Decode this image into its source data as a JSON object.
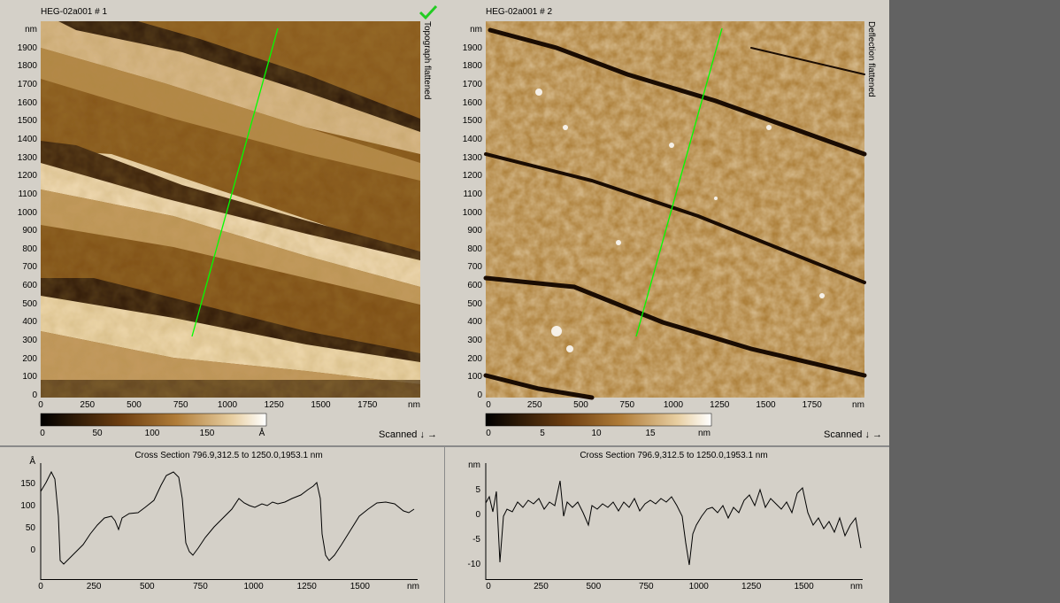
{
  "panels": [
    {
      "title": "HEG-02a001 # 1",
      "side_label": "Topograph flattened",
      "y_ticks": [
        "nm",
        "1900",
        "1800",
        "1700",
        "1600",
        "1500",
        "1400",
        "1300",
        "1200",
        "1100",
        "1000",
        "900",
        "800",
        "700",
        "600",
        "500",
        "400",
        "300",
        "200",
        "100",
        "0"
      ],
      "x_ticks": [
        "0",
        "250",
        "500",
        "750",
        "1000",
        "1250",
        "1500",
        "1750",
        "nm"
      ],
      "colorbar_ticks": [
        "0",
        "50",
        "100",
        "150",
        "Å"
      ],
      "scanned_label": "Scanned ↓ →",
      "status_icon": "checkmark-icon",
      "palette": "copper-topography"
    },
    {
      "title": "HEG-02a001 # 2",
      "side_label": "Deflection flattened",
      "y_ticks": [
        "nm",
        "1900",
        "1800",
        "1700",
        "1600",
        "1500",
        "1400",
        "1300",
        "1200",
        "1100",
        "1000",
        "900",
        "800",
        "700",
        "600",
        "500",
        "400",
        "300",
        "200",
        "100",
        "0"
      ],
      "x_ticks": [
        "0",
        "250",
        "500",
        "750",
        "1000",
        "1250",
        "1500",
        "1750",
        "nm"
      ],
      "colorbar_ticks": [
        "0",
        "5",
        "10",
        "15",
        "nm"
      ],
      "scanned_label": "Scanned ↓ →",
      "palette": "copper-deflection"
    }
  ],
  "cross_sections": [
    {
      "title": "Cross Section 796.9,312.5 to 1250.0,1953.1 nm",
      "y_ticks": [
        "Å",
        "150",
        "100",
        "50",
        "0"
      ],
      "x_ticks": [
        "0",
        "250",
        "500",
        "750",
        "1000",
        "1250",
        "1500",
        "nm"
      ]
    },
    {
      "title": "Cross Section 796.9,312.5 to 1250.0,1953.1 nm",
      "y_ticks": [
        "nm",
        "5",
        "0",
        "-5",
        "-10"
      ],
      "x_ticks": [
        "0",
        "250",
        "500",
        "750",
        "1000",
        "1250",
        "1500",
        "nm"
      ]
    }
  ],
  "colors": {
    "background": "#d4d0c8",
    "line": "#00ff00",
    "check": "#22cc22",
    "dark_side": "#626262"
  }
}
